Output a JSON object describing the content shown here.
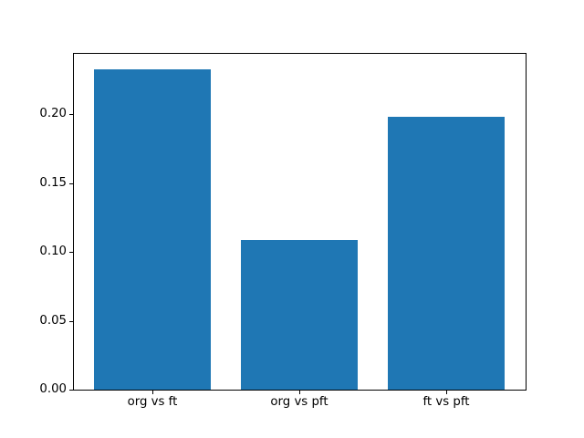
{
  "chart_data": {
    "type": "bar",
    "categories": [
      "org vs ft",
      "org vs pft",
      "ft vs pft"
    ],
    "values": [
      0.233,
      0.109,
      0.198
    ],
    "title": "",
    "xlabel": "",
    "ylabel": "",
    "ylim": [
      0,
      0.2447
    ],
    "yticks": [
      0.0,
      0.05,
      0.1,
      0.15,
      0.2
    ],
    "ytick_labels": [
      "0.00",
      "0.05",
      "0.10",
      "0.15",
      "0.20"
    ],
    "bar_color": "#1f77b4",
    "grid": false,
    "legend_position": "none",
    "bar_width_fraction": 0.8
  },
  "figure": {
    "background_color": "#ffffff",
    "frame_color": "#000000"
  }
}
